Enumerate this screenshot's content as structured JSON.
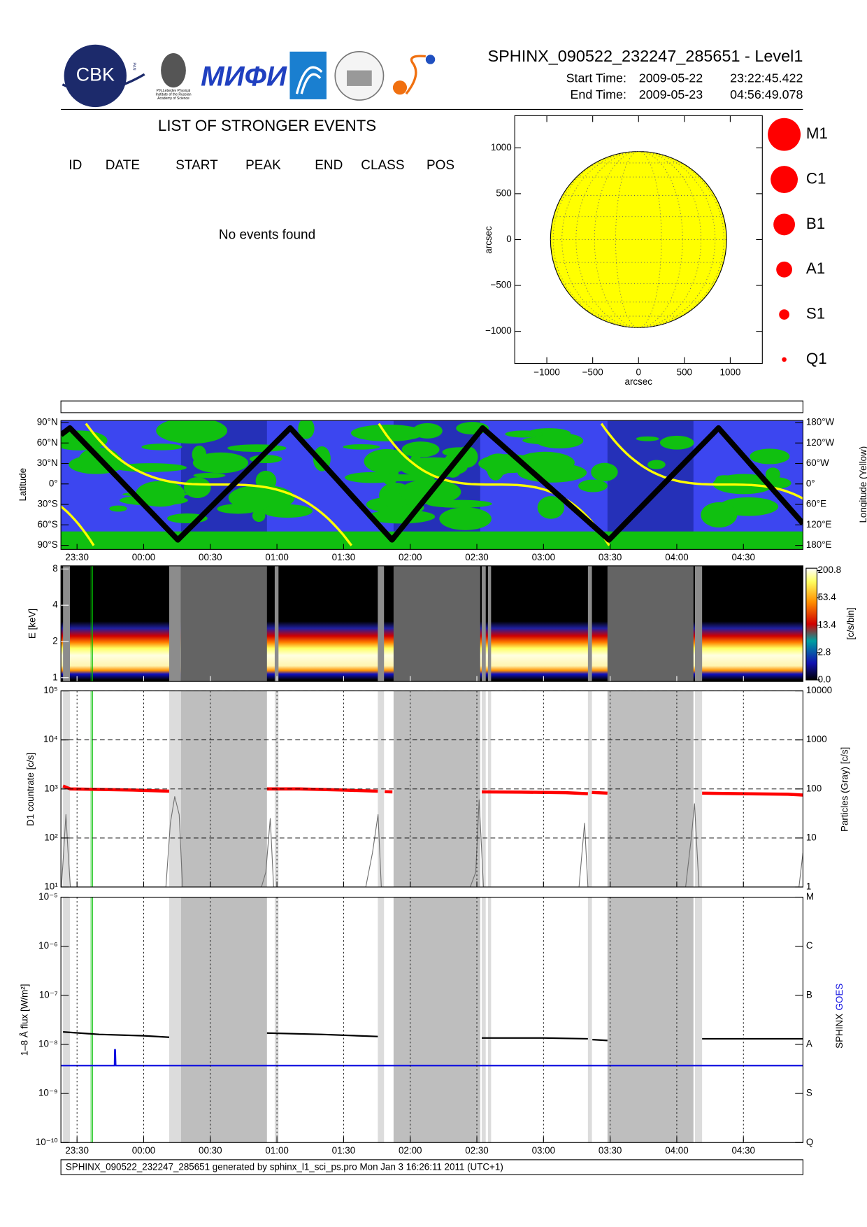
{
  "header": {
    "title": "SPHINX_090522_232247_285651 - Level1",
    "start_label": "Start Time:",
    "start_date": "2009-05-22",
    "start_time": "23:22:45.422",
    "end_label": "End Time:",
    "end_date": "2009-05-23",
    "end_time": "04:56:49.078",
    "logos": [
      "CBK",
      "PAN",
      "P.N.Lebedev Physical",
      "Institute of the Russian",
      "Academy of Science",
      "МИФИ"
    ]
  },
  "events": {
    "title": "LIST OF STRONGER EVENTS",
    "columns": [
      "ID",
      "DATE",
      "START",
      "PEAK",
      "END",
      "CLASS",
      "POS"
    ],
    "message": "No events found"
  },
  "sun_map": {
    "type": "disk",
    "xlabel": "arcsec",
    "ylabel": "arcsec",
    "xlim": [
      -1350,
      1350
    ],
    "ylim": [
      -1350,
      1350
    ],
    "xticks": [
      {
        "value": -1000,
        "label": "−1000"
      },
      {
        "value": -500,
        "label": "−500"
      },
      0,
      500,
      1000
    ],
    "yticks": [
      {
        "value": -1000,
        "label": "−1000"
      },
      {
        "value": -500,
        "label": "−500"
      },
      0,
      500,
      1000
    ],
    "radius": 960,
    "color": "#ffff00",
    "legend": [
      "M1",
      "C1",
      "B1",
      "A1",
      "S1",
      "Q1"
    ],
    "legend_color": "#ff0000"
  },
  "time_axis": {
    "xlim": [
      22.75,
      356.8
    ],
    "xticks": [
      {
        "value": 30,
        "label": "23:30"
      },
      {
        "value": 60,
        "label": "00:00"
      },
      {
        "value": 90,
        "label": "00:30"
      },
      {
        "value": 120,
        "label": "01:00"
      },
      {
        "value": 150,
        "label": "01:30"
      },
      {
        "value": 180,
        "label": "02:00"
      },
      {
        "value": 210,
        "label": "02:30"
      },
      {
        "value": 240,
        "label": "03:00"
      },
      {
        "value": 270,
        "label": "03:30"
      },
      {
        "value": 300,
        "label": "04:00"
      },
      {
        "value": 330,
        "label": "04:30"
      }
    ],
    "eclipses": [
      [
        76.8,
        115.5
      ],
      [
        172.5,
        211.5
      ],
      [
        268.8,
        307.5
      ]
    ],
    "gaps": [
      [
        23.7,
        26.8
      ],
      [
        71.5,
        76.8
      ],
      [
        119,
        120.7
      ],
      [
        165.4,
        168.2
      ],
      [
        212.2,
        214
      ],
      [
        215,
        216.4
      ],
      [
        260,
        261.8
      ],
      [
        308.2,
        311.4
      ]
    ],
    "markers": [
      36.3,
      37
    ],
    "marker_color": "#00c000"
  },
  "orbit": {
    "type": "line",
    "ylabel": "Latitude",
    "y2label": "Longitude (Yellow)",
    "ylim": [
      -96,
      93
    ],
    "y2lim": [
      -192,
      186
    ],
    "yticks": [
      {
        "value": 90,
        "label": "90°N"
      },
      {
        "value": 60,
        "label": "60°N"
      },
      {
        "value": 30,
        "label": "30°N"
      },
      {
        "value": 0,
        "label": "0°"
      },
      {
        "value": -30,
        "label": "30°S"
      },
      {
        "value": -60,
        "label": "60°S"
      },
      {
        "value": -90,
        "label": "90°S"
      }
    ],
    "y2ticks": [
      {
        "value": 180,
        "label": "180°W"
      },
      {
        "value": 120,
        "label": "120°W"
      },
      {
        "value": 60,
        "label": "60°W"
      },
      {
        "value": 0,
        "label": "0°"
      },
      {
        "value": -60,
        "label": "60°E"
      },
      {
        "value": -120,
        "label": "120°E"
      },
      {
        "value": -180,
        "label": "180°E"
      }
    ],
    "track": {
      "color": "#000000",
      "x": [
        22.75,
        26.8,
        75.4,
        126,
        171.8,
        212.6,
        269.5,
        318.8,
        356.8
      ],
      "values": [
        72,
        82,
        -82,
        82,
        -82,
        82,
        -82,
        82,
        -58
      ]
    }
  },
  "spectrum": {
    "type": "spectrogram",
    "ylabel": "E [keV]",
    "log": true,
    "ylim": [
      0.93,
      8.5
    ],
    "yticks": [
      1,
      2,
      4,
      8
    ],
    "colorbar_label": "[c/s/bin]",
    "colorbar_ticks": [
      {
        "value": 0,
        "label": "0.0"
      },
      2.8,
      13.4,
      53.4,
      200.8
    ]
  },
  "countrate": {
    "type": "line",
    "log": true,
    "ylabel": "D1 countrate [c/s]",
    "y2label": "Particles (Gray) [c/s]",
    "ylim": [
      10,
      100000
    ],
    "y2lim": [
      1,
      10000
    ],
    "yticks": [
      {
        "value": 10,
        "label": "10¹"
      },
      {
        "value": 100,
        "label": "10²"
      },
      {
        "value": 1000,
        "label": "10³"
      },
      {
        "value": 10000,
        "label": "10⁴"
      },
      {
        "value": 100000,
        "label": "10⁵"
      }
    ],
    "y2ticks": [
      1,
      10,
      100,
      1000,
      10000
    ],
    "series": [
      {
        "name": "D1",
        "color": "#ff0000",
        "x": [
          23.7,
          27,
          40,
          55,
          71.5,
          73,
          115.5,
          130,
          150,
          165.4,
          167,
          168.5,
          172,
          190,
          212.2,
          230,
          250,
          260,
          261,
          261.8,
          268.8,
          290,
          311.4,
          330,
          350,
          356.8
        ],
        "values": [
          1150,
          1000,
          980,
          950,
          900,
          null,
          1000,
          1000,
          950,
          900,
          null,
          880,
          870,
          null,
          870,
          860,
          840,
          800,
          null,
          850,
          820,
          null,
          820,
          800,
          780,
          750
        ]
      },
      {
        "name": "Particles",
        "color": "#707070",
        "axis": "y2",
        "x": [
          23,
          25,
          26,
          27,
          70,
          72,
          74,
          76,
          77.5,
          113,
          115,
          117,
          118.5,
          160,
          163,
          165.5,
          167,
          207,
          209.5,
          211,
          213,
          256,
          258.5,
          260,
          304,
          306.5,
          308,
          310,
          355,
          356.8
        ],
        "values": [
          1,
          30,
          5,
          1,
          1,
          20,
          70,
          30,
          1,
          1,
          2,
          25,
          1,
          1,
          5,
          30,
          1,
          1,
          2,
          60,
          1,
          1,
          20,
          1,
          1,
          10,
          50,
          1,
          1,
          5
        ]
      }
    ]
  },
  "flux": {
    "type": "line",
    "log": true,
    "ylabel": "1–8 Å flux [W/m²]",
    "y2label": [
      "SPHINX",
      "GOES"
    ],
    "ylim": [
      1e-10,
      1e-05
    ],
    "y2lim": [
      1e-10,
      1e-05
    ],
    "yticks": [
      {
        "value": 1e-10,
        "label": "10⁻¹⁰"
      },
      {
        "value": 1e-09,
        "label": "10⁻⁹"
      },
      {
        "value": 1e-08,
        "label": "10⁻⁸"
      },
      {
        "value": 1e-07,
        "label": "10⁻⁷"
      },
      {
        "value": 1e-06,
        "label": "10⁻⁶"
      },
      {
        "value": 1e-05,
        "label": "10⁻⁵"
      }
    ],
    "y2ticks": [
      {
        "value": 1e-10,
        "label": "Q"
      },
      {
        "value": 1e-09,
        "label": "S"
      },
      {
        "value": 1e-08,
        "label": "A"
      },
      {
        "value": 1e-07,
        "label": "B"
      },
      {
        "value": 1e-06,
        "label": "C"
      },
      {
        "value": 1e-05,
        "label": "M"
      }
    ],
    "series": [
      {
        "name": "SPHINX",
        "color": "#000000",
        "x": [
          23.7,
          40,
          60,
          71.5,
          73,
          115.5,
          140,
          165.4,
          166,
          168.2,
          170,
          212.2,
          240,
          260,
          261,
          262,
          268.8,
          290,
          311.4,
          356.8
        ],
        "values": [
          1.8e-08,
          1.6e-08,
          1.5e-08,
          1.4e-08,
          null,
          1.7e-08,
          1.6e-08,
          1.45e-08,
          null,
          1.45e-08,
          null,
          1.35e-08,
          1.35e-08,
          1.3e-08,
          null,
          1.25e-08,
          1.2e-08,
          null,
          1.3e-08,
          1.3e-08
        ]
      },
      {
        "name": "GOES",
        "color": "#1010e0",
        "x": [
          22.75,
          46.9,
          47,
          47.2,
          47.4,
          356.8
        ],
        "values": [
          3.7e-09,
          3.7e-09,
          7.8e-09,
          7.8e-09,
          3.7e-09,
          3.7e-09
        ]
      }
    ]
  },
  "footer": "SPHINX_090522_232247_285651 generated by sphinx_l1_sci_ps.pro Mon Jan  3 16:26:11 2011 (UTC+1)"
}
